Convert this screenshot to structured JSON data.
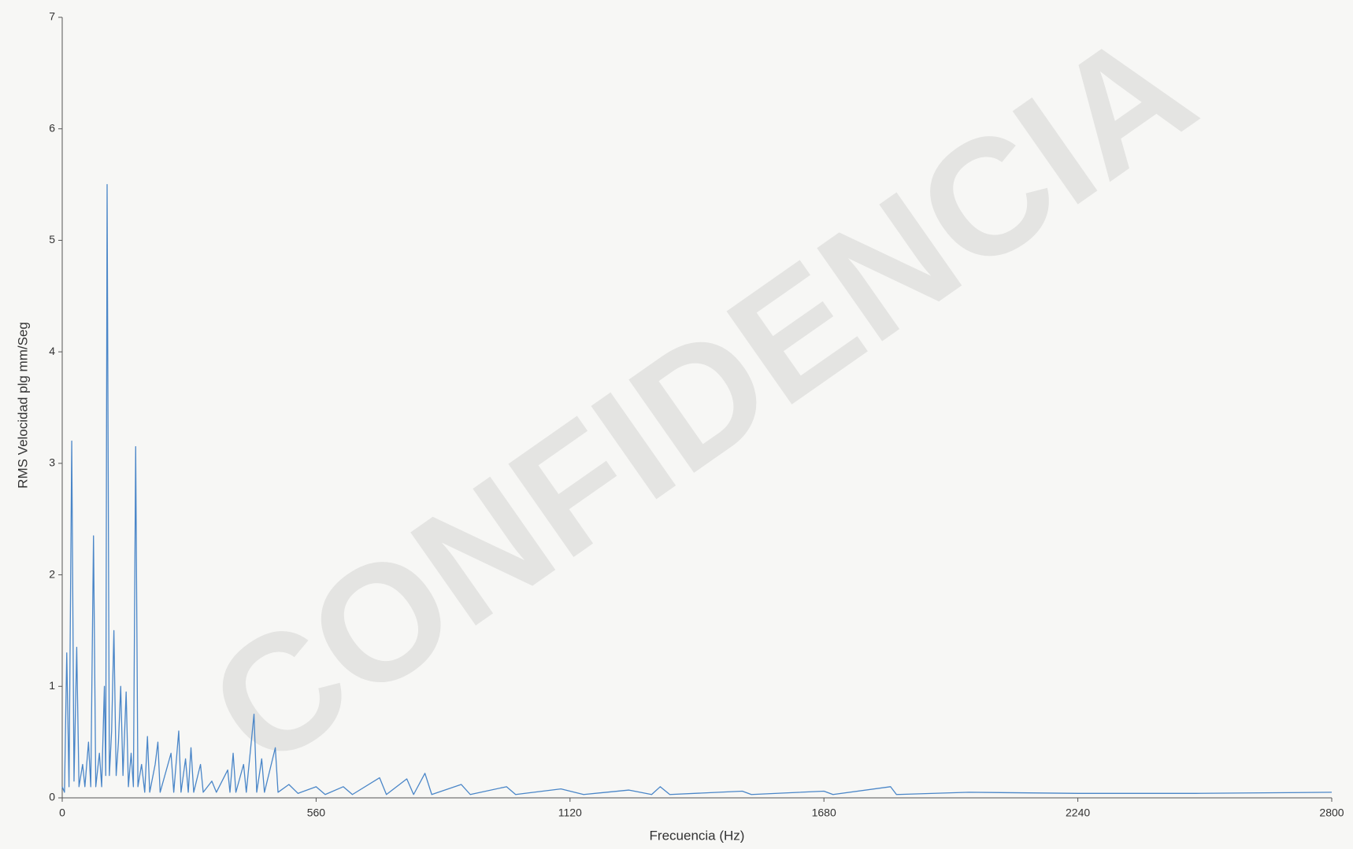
{
  "chart_data": {
    "type": "line",
    "xlabel": "Frecuencia (Hz)",
    "ylabel": "RMS Velocidad plg mm/Seg",
    "watermark": "CONFIDENCIA",
    "color": "#4a86c8",
    "xlim": [
      0,
      2800
    ],
    "xticks": [
      0,
      560,
      1120,
      1680,
      2240,
      2800
    ],
    "ylim": [
      0,
      7
    ],
    "yticks": [
      0,
      1,
      2,
      3,
      4,
      5,
      6,
      7
    ],
    "grid": false,
    "x": [
      0,
      5,
      10,
      15,
      21,
      26,
      32,
      37,
      45,
      50,
      58,
      63,
      69,
      74,
      82,
      87,
      93,
      96,
      99,
      104,
      109,
      114,
      119,
      124,
      129,
      134,
      141,
      146,
      152,
      157,
      162,
      167,
      175,
      182,
      188,
      193,
      205,
      211,
      216,
      240,
      246,
      257,
      262,
      272,
      278,
      284,
      290,
      305,
      311,
      330,
      340,
      365,
      370,
      377,
      383,
      400,
      406,
      423,
      429,
      440,
      446,
      470,
      476,
      500,
      520,
      560,
      580,
      620,
      640,
      700,
      715,
      760,
      775,
      800,
      815,
      880,
      900,
      980,
      1000,
      1100,
      1150,
      1250,
      1300,
      1319,
      1340,
      1500,
      1520,
      1680,
      1700,
      1827,
      1840,
      2000,
      2240,
      2500,
      2800
    ],
    "values": [
      0.1,
      0.05,
      1.3,
      0.1,
      3.2,
      0.15,
      1.35,
      0.1,
      0.3,
      0.1,
      0.5,
      0.1,
      2.35,
      0.1,
      0.4,
      0.1,
      1.0,
      0.2,
      5.5,
      0.2,
      0.6,
      1.5,
      0.2,
      0.5,
      1.0,
      0.2,
      0.95,
      0.1,
      0.4,
      0.1,
      3.15,
      0.1,
      0.3,
      0.05,
      0.55,
      0.05,
      0.3,
      0.5,
      0.05,
      0.4,
      0.05,
      0.6,
      0.05,
      0.35,
      0.05,
      0.45,
      0.05,
      0.3,
      0.05,
      0.15,
      0.05,
      0.25,
      0.05,
      0.4,
      0.05,
      0.3,
      0.05,
      0.75,
      0.05,
      0.35,
      0.05,
      0.45,
      0.05,
      0.12,
      0.04,
      0.1,
      0.03,
      0.1,
      0.03,
      0.18,
      0.03,
      0.17,
      0.03,
      0.22,
      0.03,
      0.12,
      0.03,
      0.1,
      0.03,
      0.08,
      0.03,
      0.07,
      0.03,
      0.1,
      0.03,
      0.06,
      0.03,
      0.06,
      0.03,
      0.1,
      0.03,
      0.05,
      0.04,
      0.04,
      0.05
    ]
  }
}
